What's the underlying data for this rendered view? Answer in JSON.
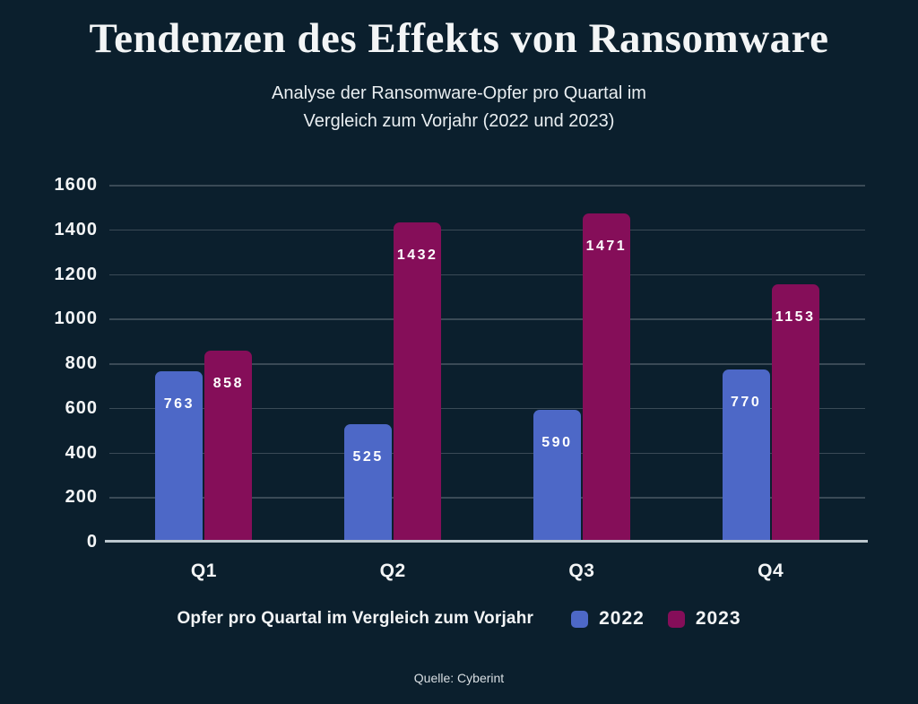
{
  "page": {
    "title": "Tendenzen des Effekts von Ransomware",
    "subtitle_lines": [
      "Analyse der Ransomware-Opfer pro Quartal im",
      "Vergleich zum Vorjahr (2022 und 2023)"
    ],
    "source": "Quelle: Cyberint"
  },
  "legend": {
    "label": "Opfer pro Quartal im Vergleich zum Vorjahr",
    "items": [
      {
        "name": "2022",
        "color": "#4d68c7"
      },
      {
        "name": "2023",
        "color": "#850e59"
      }
    ]
  },
  "colors": {
    "background": "#0b1f2d",
    "bar_2022": "#4d68c7",
    "bar_2023": "#850e59",
    "gridline": "#3a4a56",
    "axis_line": "#bcc7ce",
    "text": "#f3f5f6"
  },
  "chart_data": {
    "type": "bar",
    "title": "Tendenzen des Effekts von Ransomware",
    "subtitle": "Analyse der Ransomware-Opfer pro Quartal im Vergleich zum Vorjahr (2022 und 2023)",
    "categories": [
      "Q1",
      "Q2",
      "Q3",
      "Q4"
    ],
    "series": [
      {
        "name": "2022",
        "color": "#4d68c7",
        "values": [
          763,
          525,
          590,
          770
        ]
      },
      {
        "name": "2023",
        "color": "#850e59",
        "values": [
          858,
          1432,
          1471,
          1153
        ]
      }
    ],
    "xlabel": "",
    "ylabel": "",
    "ylim": [
      0,
      1600
    ],
    "yticks": [
      0,
      200,
      400,
      600,
      800,
      1000,
      1200,
      1400,
      1600
    ],
    "grid": true,
    "legend_label": "Opfer pro Quartal im Vergleich zum Vorjahr",
    "legend_position": "bottom",
    "source": "Quelle: Cyberint"
  }
}
